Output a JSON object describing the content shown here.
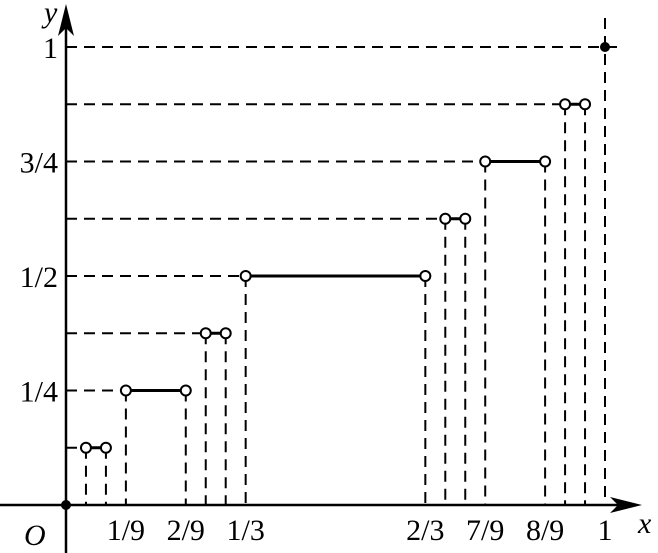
{
  "chart_data": {
    "type": "step",
    "function_name": "Cantor-type staircase function",
    "xlabel": "x",
    "ylabel": "y",
    "origin_label": "O",
    "xlim": [
      0,
      1
    ],
    "ylim": [
      0,
      1
    ],
    "grid": false,
    "x_tick_labels": [
      {
        "x": 0.111111,
        "label": "1/9"
      },
      {
        "x": 0.222222,
        "label": "2/9"
      },
      {
        "x": 0.333333,
        "label": "1/3"
      },
      {
        "x": 0.666667,
        "label": "2/3"
      },
      {
        "x": 0.777778,
        "label": "7/9"
      },
      {
        "x": 0.888889,
        "label": "8/9"
      },
      {
        "x": 1.0,
        "label": "1"
      }
    ],
    "y_tick_labels": [
      {
        "y": 0.25,
        "label": "1/4"
      },
      {
        "y": 0.5,
        "label": "1/2"
      },
      {
        "y": 0.75,
        "label": "3/4"
      },
      {
        "y": 1.0,
        "label": "1"
      }
    ],
    "segments": [
      {
        "x0": 0.037037,
        "x1": 0.074074,
        "y": 0.125
      },
      {
        "x0": 0.111111,
        "x1": 0.222222,
        "y": 0.25
      },
      {
        "x0": 0.259259,
        "x1": 0.296296,
        "y": 0.375
      },
      {
        "x0": 0.333333,
        "x1": 0.666667,
        "y": 0.5
      },
      {
        "x0": 0.703704,
        "x1": 0.740741,
        "y": 0.625
      },
      {
        "x0": 0.777778,
        "x1": 0.888889,
        "y": 0.75
      },
      {
        "x0": 0.925926,
        "x1": 0.962963,
        "y": 0.875
      }
    ],
    "endpoints": "open",
    "filled_points": [
      {
        "x": 0,
        "y": 0
      },
      {
        "x": 1,
        "y": 1
      }
    ]
  }
}
